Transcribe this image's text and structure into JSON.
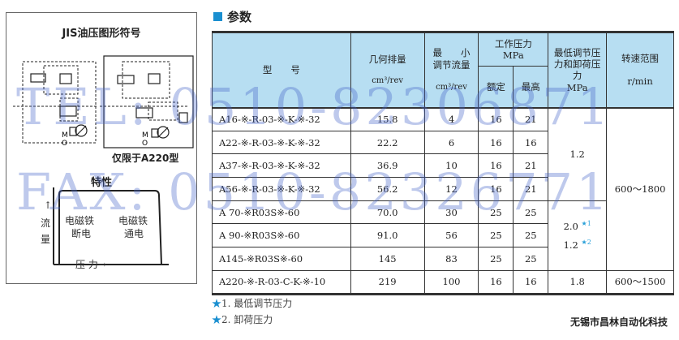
{
  "left_panel": {
    "title": "JIS油压图形符号",
    "a220_note": "仅限于A220型",
    "char_title": "特性",
    "y_label_1": "流",
    "y_label_2": "量",
    "off_1": "电磁铁",
    "off_2": "断电",
    "on_1": "电磁铁",
    "on_2": "通电",
    "x_label": "压 力→",
    "arrow_up": "↑"
  },
  "section_title": "参数",
  "colors": {
    "accent": "#1a8fd0",
    "header_bg": "#b7def2"
  },
  "table": {
    "headers": {
      "model": "型　　号",
      "disp": "几何排量",
      "disp_unit": "cm³/rev",
      "minflow_1": "最　　小",
      "minflow_2": "调节流量",
      "minflow_unit": "cm³/rev",
      "work": "工作压力",
      "work_unit": "MPa",
      "rated": "额定",
      "max": "最高",
      "minp": "最低调节压力和卸荷压力",
      "minp_unit": "MPa",
      "speed": "转速范围",
      "speed_unit": "r/min"
    },
    "rows": [
      {
        "model": "A16-※-R-03-※-K-※-32",
        "disp": "15.8",
        "flow": "4",
        "rated": "16",
        "max": "21"
      },
      {
        "model": "A22-※-R-03-※-K-※-32",
        "disp": "22.2",
        "flow": "6",
        "rated": "16",
        "max": "16"
      },
      {
        "model": "A37-※-R-03-※-K-※-32",
        "disp": "36.9",
        "flow": "10",
        "rated": "16",
        "max": "21"
      },
      {
        "model": "A56-※-R-03-※-K-※-32",
        "disp": "56.2",
        "flow": "12",
        "rated": "16",
        "max": "21"
      },
      {
        "model": "A 70-※R03S※-60",
        "disp": "70.0",
        "flow": "30",
        "rated": "25",
        "max": "25"
      },
      {
        "model": "A 90-※R03S※-60",
        "disp": "91.0",
        "flow": "56",
        "rated": "25",
        "max": "25"
      },
      {
        "model": "A145-※R03S※-60",
        "disp": "145",
        "flow": "83",
        "rated": "25",
        "max": "25"
      },
      {
        "model": "A220-※-R-03-C-K-※-10",
        "disp": "219",
        "flow": "100",
        "rated": "16",
        "max": "16",
        "minp": "1.8",
        "speed": "600～1500"
      }
    ],
    "minp_group1": "1.2",
    "minp_group2a": "2.0",
    "minp_group2b": "1.2",
    "star1": "★1",
    "star2": "★2",
    "speed_group1": "600～1800"
  },
  "notes": [
    {
      "star": "★",
      "text": "1. 最低调节压力"
    },
    {
      "star": "★",
      "text": "2. 卸荷压力"
    }
  ],
  "company": "无锡市昌林自动化科技",
  "watermarks": [
    "TEL: 0510-82306871",
    "FAX: 0510-82326771"
  ]
}
